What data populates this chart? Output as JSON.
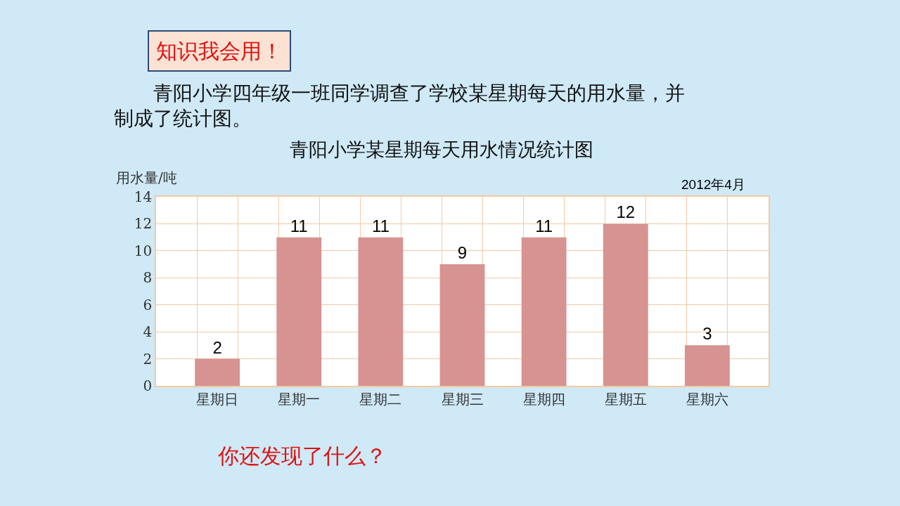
{
  "chart_data": {
    "type": "bar",
    "title": "青阳小学某星期每天用水情况统计图",
    "ylabel": "用水量/吨",
    "categories": [
      "星期日",
      "星期一",
      "星期二",
      "星期三",
      "星期四",
      "星期五",
      "星期六"
    ],
    "values": [
      2,
      11,
      11,
      9,
      11,
      12,
      3
    ],
    "color": "#d69391",
    "ylim": [
      0,
      14
    ],
    "yticks": [
      0,
      2,
      4,
      6,
      8,
      10,
      12,
      14
    ],
    "grid": true,
    "data_labels": true,
    "annotations": [
      "知识我会用！",
      "青阳小学四年级一班同学调查了学校某星期每天的用水量，并制成了统计图。",
      "2012年4月",
      "你还发现了什么？"
    ]
  }
}
